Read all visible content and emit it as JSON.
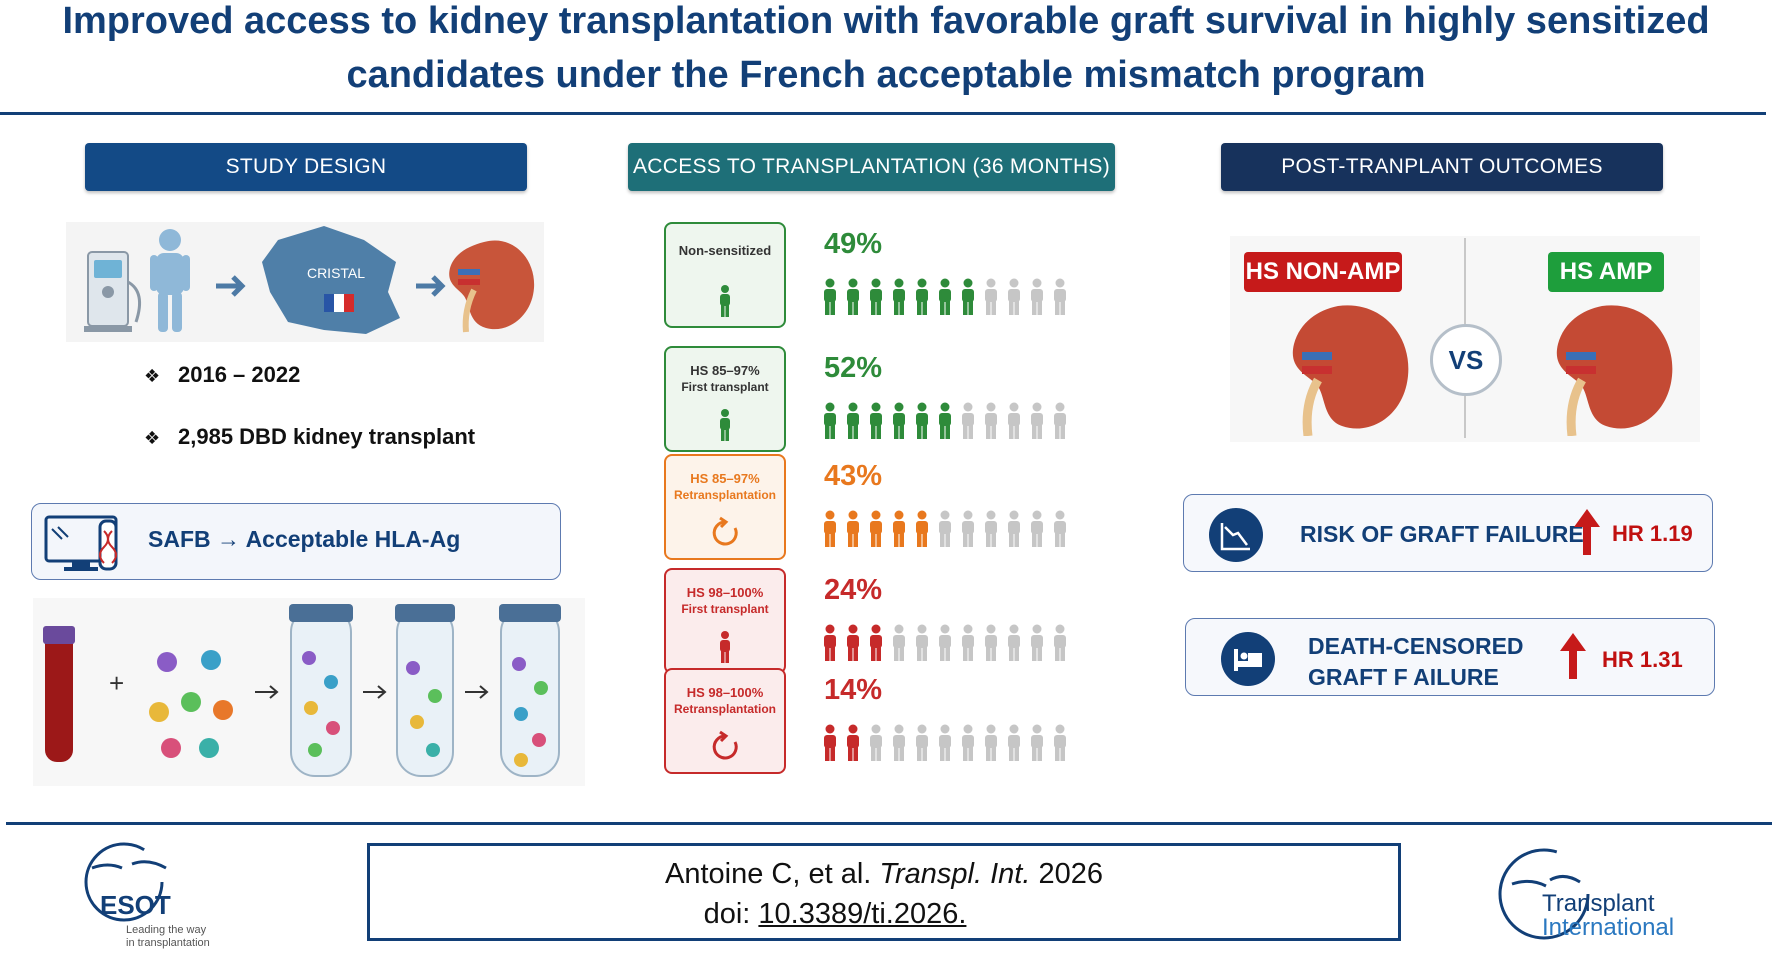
{
  "title_line1": "Improved access to kidney transplantation with favorable graft survival in highly sensitized",
  "title_line2": "candidates under the French acceptable mismatch program",
  "study": {
    "header": "STUDY DESIGN",
    "map_label": "CRISTAL",
    "bullets": [
      "2016 – 2022",
      "2,985 DBD kidney transplant"
    ],
    "safb_label": "SAFB",
    "safb_target": "Acceptable HLA-Ag",
    "icons": [
      "dialysis-machine-icon",
      "patient-icon",
      "france-map-icon",
      "kidney-icon",
      "computer-dna-icon",
      "blood-tube-icon",
      "antigen-beads-icon",
      "test-tube-icon"
    ]
  },
  "access": {
    "header": "ACCESS TO TRANSPLANTATION (36 MONTHS)",
    "groups": [
      {
        "label1": "Non-sensitized",
        "label2": "",
        "pct": "49%",
        "pct_value": 49,
        "filled": 7,
        "total": 11,
        "color": "#2e8b3a",
        "icon": "person",
        "bg": "#eef6ee"
      },
      {
        "label1": "HS 85–97%",
        "label2": "First transplant",
        "pct": "52%",
        "pct_value": 52,
        "filled": 6,
        "total": 11,
        "color": "#2e8b3a",
        "icon": "person",
        "bg": "#eef6ee"
      },
      {
        "label1": "HS 85–97%",
        "label2": "Retransplantation",
        "pct": "43%",
        "pct_value": 43,
        "filled": 5,
        "total": 11,
        "color": "#e8781e",
        "icon": "cycle",
        "bg": "#fdf3ea"
      },
      {
        "label1": "HS 98–100%",
        "label2": "First transplant",
        "pct": "24%",
        "pct_value": 24,
        "filled": 3,
        "total": 11,
        "color": "#c62a2a",
        "icon": "person",
        "bg": "#fbecec"
      },
      {
        "label1": "HS 98–100%",
        "label2": "Retransplantation",
        "pct": "14%",
        "pct_value": 14,
        "filled": 2,
        "total": 11,
        "color": "#c62a2a",
        "icon": "cycle",
        "bg": "#fbecec"
      }
    ]
  },
  "outcomes": {
    "header": "POST-TRANPLANT OUTCOMES",
    "left_tag": "HS NON-AMP",
    "right_tag": "HS AMP",
    "vs": "VS",
    "items": [
      {
        "text1": "RISK OF GRAFT FAILURE",
        "text2": "",
        "hr": "HR 1.19",
        "icon": "declining-chart-icon"
      },
      {
        "text1": "DEATH-CENSORED",
        "text2": "GRAFT F AILURE",
        "hr": "HR 1.31",
        "icon": "hospital-bed-icon"
      }
    ]
  },
  "citation": {
    "authors": "Antoine C, et al.",
    "journal": "Transpl. Int.",
    "year": "2026",
    "doi_label": "doi:",
    "doi": "10.3389/ti.2026."
  },
  "logos": {
    "esot": "ESOT",
    "esot_tag1": "Leading the way",
    "esot_tag2": "in transplantation",
    "ti_line1": "Transplant",
    "ti_line2": "International"
  },
  "colors": {
    "navy": "#123f77",
    "teal": "#1d6f77",
    "dark_navy": "#17325c",
    "red": "#c01010",
    "green": "#1e9e3c"
  }
}
